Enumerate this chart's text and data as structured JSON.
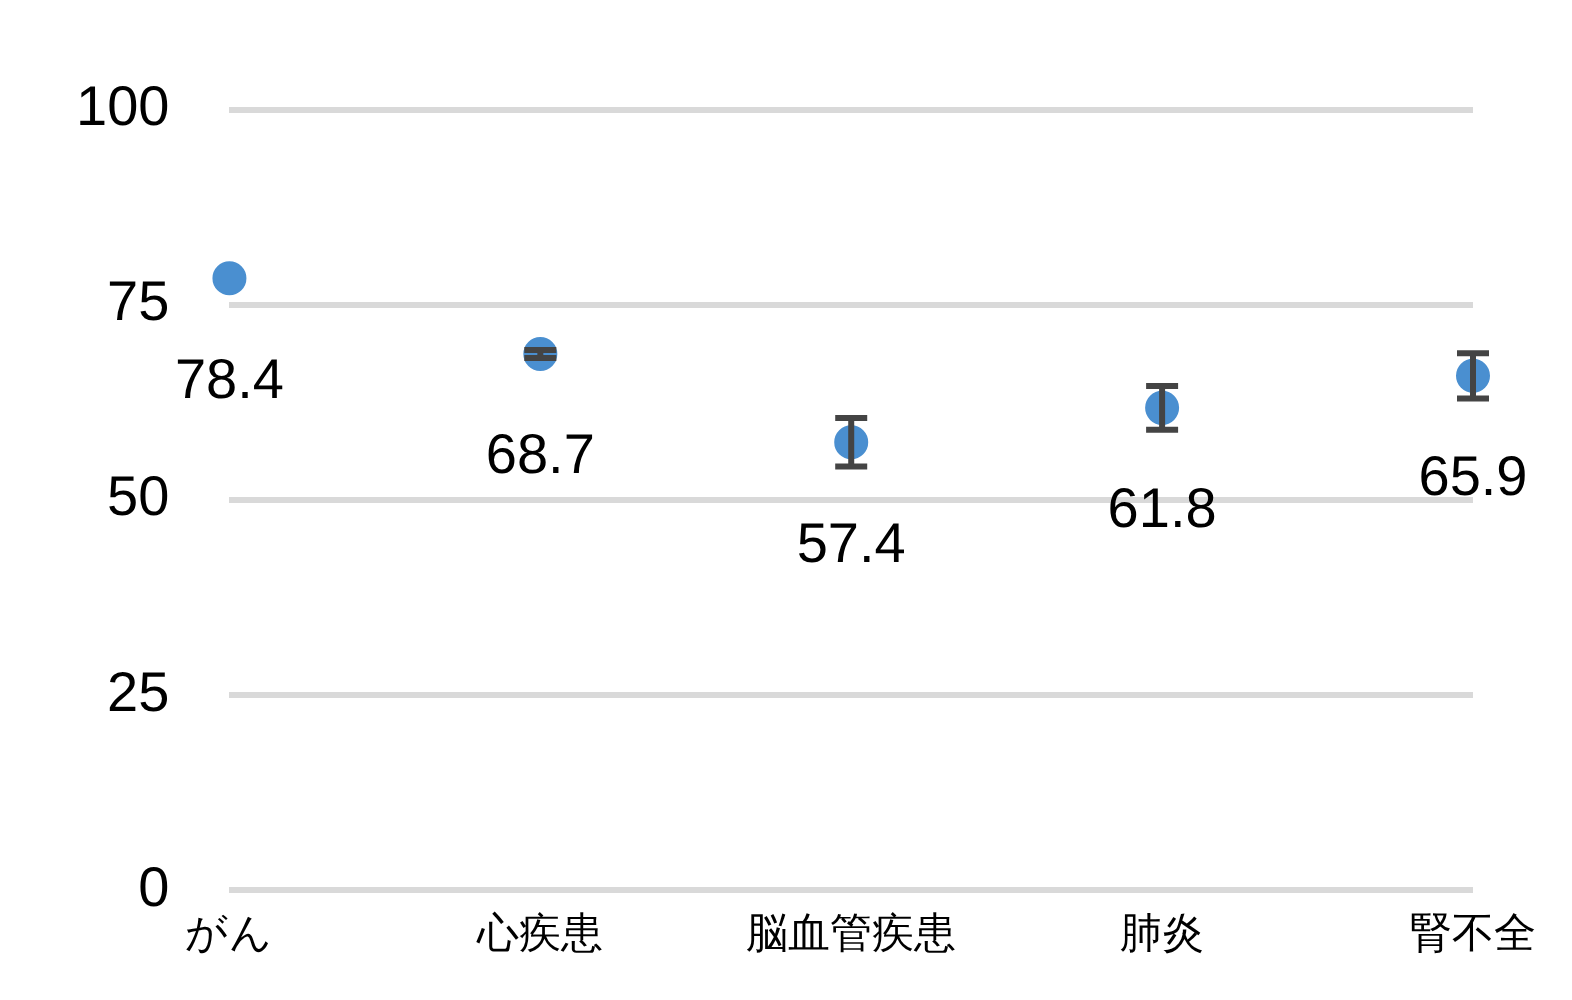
{
  "chart_data": {
    "type": "scatter",
    "categories": [
      "がん",
      "心疾患",
      "脳血管疾患",
      "肺炎",
      "腎不全"
    ],
    "values": [
      78.4,
      68.7,
      57.4,
      61.8,
      65.9
    ],
    "errors": [
      null,
      0.5,
      3.1,
      2.8,
      2.9
    ],
    "color": "#4a8fd0",
    "marker": "circle",
    "data_labels": true,
    "ylim": [
      0,
      100
    ],
    "yticks": [
      0,
      25,
      50,
      75,
      100
    ],
    "grid": "y",
    "legend": false
  }
}
